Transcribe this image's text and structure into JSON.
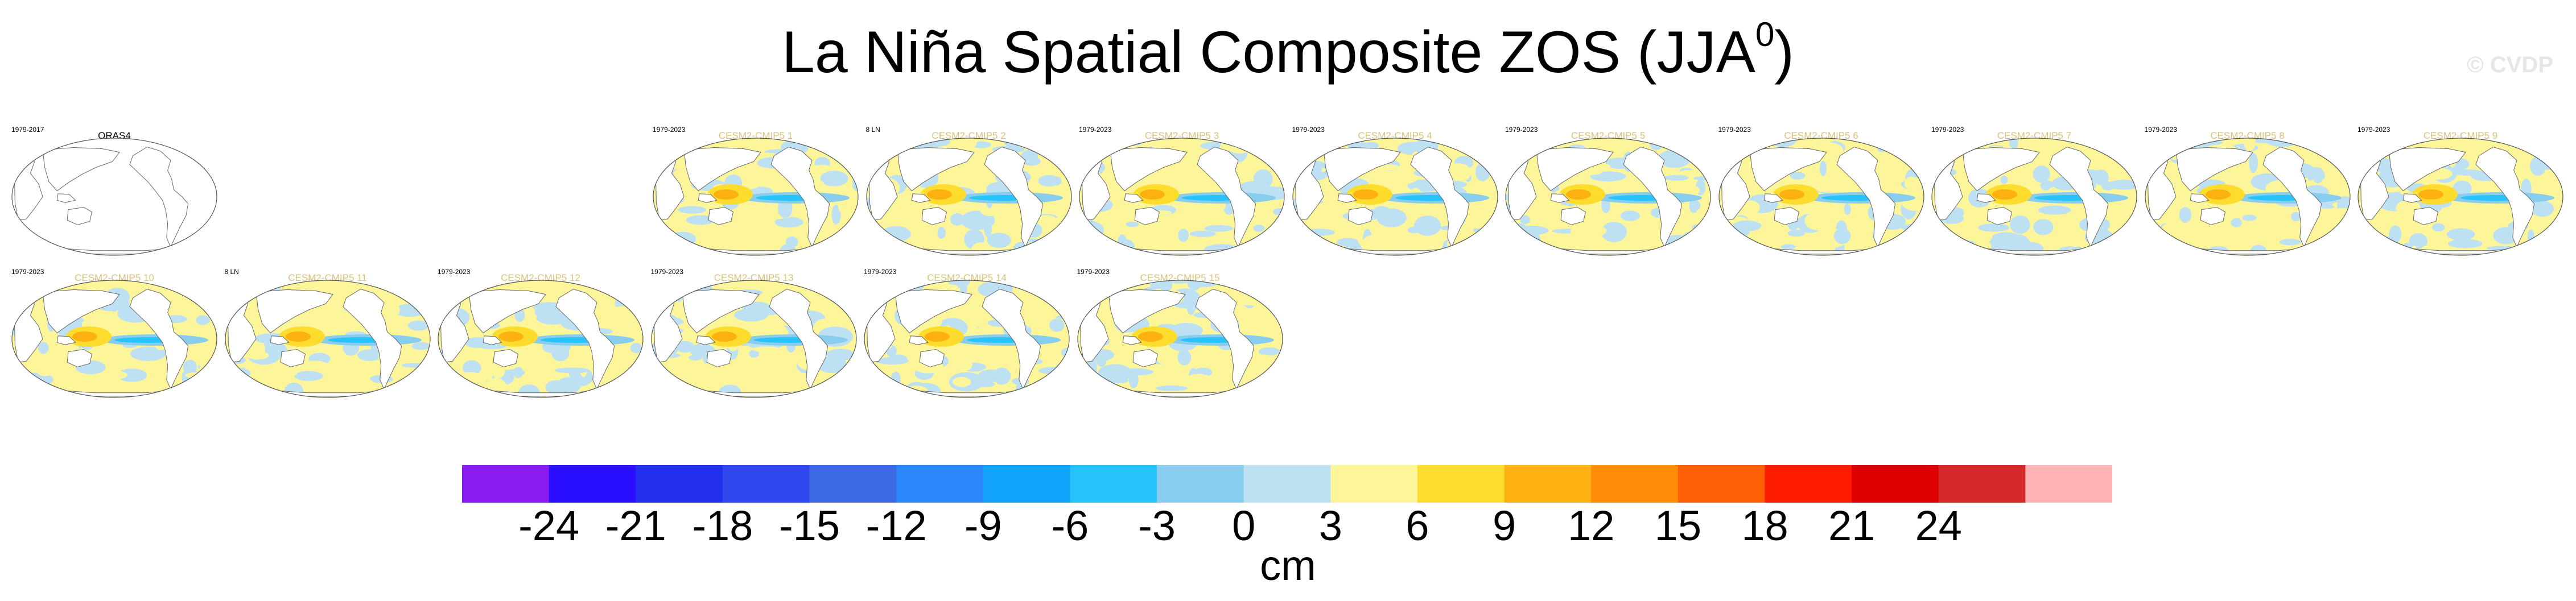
{
  "title": {
    "main": "La Niña Spatial Composite ZOS (JJA",
    "sup": "0",
    "close": ")"
  },
  "watermark": "© CVDP",
  "colors": {
    "levels": [
      "#8a1cf0",
      "#2a0fff",
      "#2230ee",
      "#2f47ec",
      "#3b6ae4",
      "#2c87fa",
      "#12a3fb",
      "#27c3fb",
      "#88cdee",
      "#bde0f2",
      "#fdf59a",
      "#fedc2e",
      "#fdb111",
      "#fe8c06",
      "#fe6007",
      "#fe1c00",
      "#de0000",
      "#d42a2a",
      "#feb4b4"
    ],
    "land": "#ffffff",
    "coast": "#666666"
  },
  "chart_data": {
    "type": "heatmap",
    "title": "La Niña Spatial Composite ZOS (JJA0)",
    "variable": "ZOS",
    "units": "cm",
    "colorbar_ticks": [
      -24,
      -21,
      -18,
      -15,
      -12,
      -9,
      -6,
      -3,
      0,
      3,
      6,
      9,
      12,
      15,
      18,
      21,
      24
    ],
    "panels": [
      {
        "name": "ORAS4",
        "left": "1979-2017",
        "right": "",
        "data": false
      },
      {
        "name": "CESM2-CMIP5 1",
        "left": "1979-2023",
        "right": "",
        "data": true
      },
      {
        "name": "CESM2-CMIP5 2",
        "left": "8 LN",
        "right": "",
        "data": true
      },
      {
        "name": "CESM2-CMIP5 3",
        "left": "1979-2023",
        "right": "",
        "data": true
      },
      {
        "name": "CESM2-CMIP5 4",
        "left": "1979-2023",
        "right": "",
        "data": true
      },
      {
        "name": "CESM2-CMIP5 5",
        "left": "1979-2023",
        "right": "",
        "data": true
      },
      {
        "name": "CESM2-CMIP5 6",
        "left": "1979-2023",
        "right": "",
        "data": true
      },
      {
        "name": "CESM2-CMIP5 7",
        "left": "1979-2023",
        "right": "",
        "data": true
      },
      {
        "name": "CESM2-CMIP5 8",
        "left": "1979-2023",
        "right": "",
        "data": true
      },
      {
        "name": "CESM2-CMIP5 9",
        "left": "1979-2023",
        "right": "",
        "data": true
      },
      {
        "name": "CESM2-CMIP5 10",
        "left": "1979-2023",
        "right": "",
        "data": true
      },
      {
        "name": "CESM2-CMIP5 11",
        "left": "8 LN",
        "right": "",
        "data": true
      },
      {
        "name": "CESM2-CMIP5 12",
        "left": "1979-2023",
        "right": "",
        "data": true
      },
      {
        "name": "CESM2-CMIP5 13",
        "left": "1979-2023",
        "right": "",
        "data": true
      },
      {
        "name": "CESM2-CMIP5 14",
        "left": "1979-2023",
        "right": "",
        "data": true
      },
      {
        "name": "CESM2-CMIP5 15",
        "left": "1979-2023",
        "right": "",
        "data": true
      }
    ]
  }
}
